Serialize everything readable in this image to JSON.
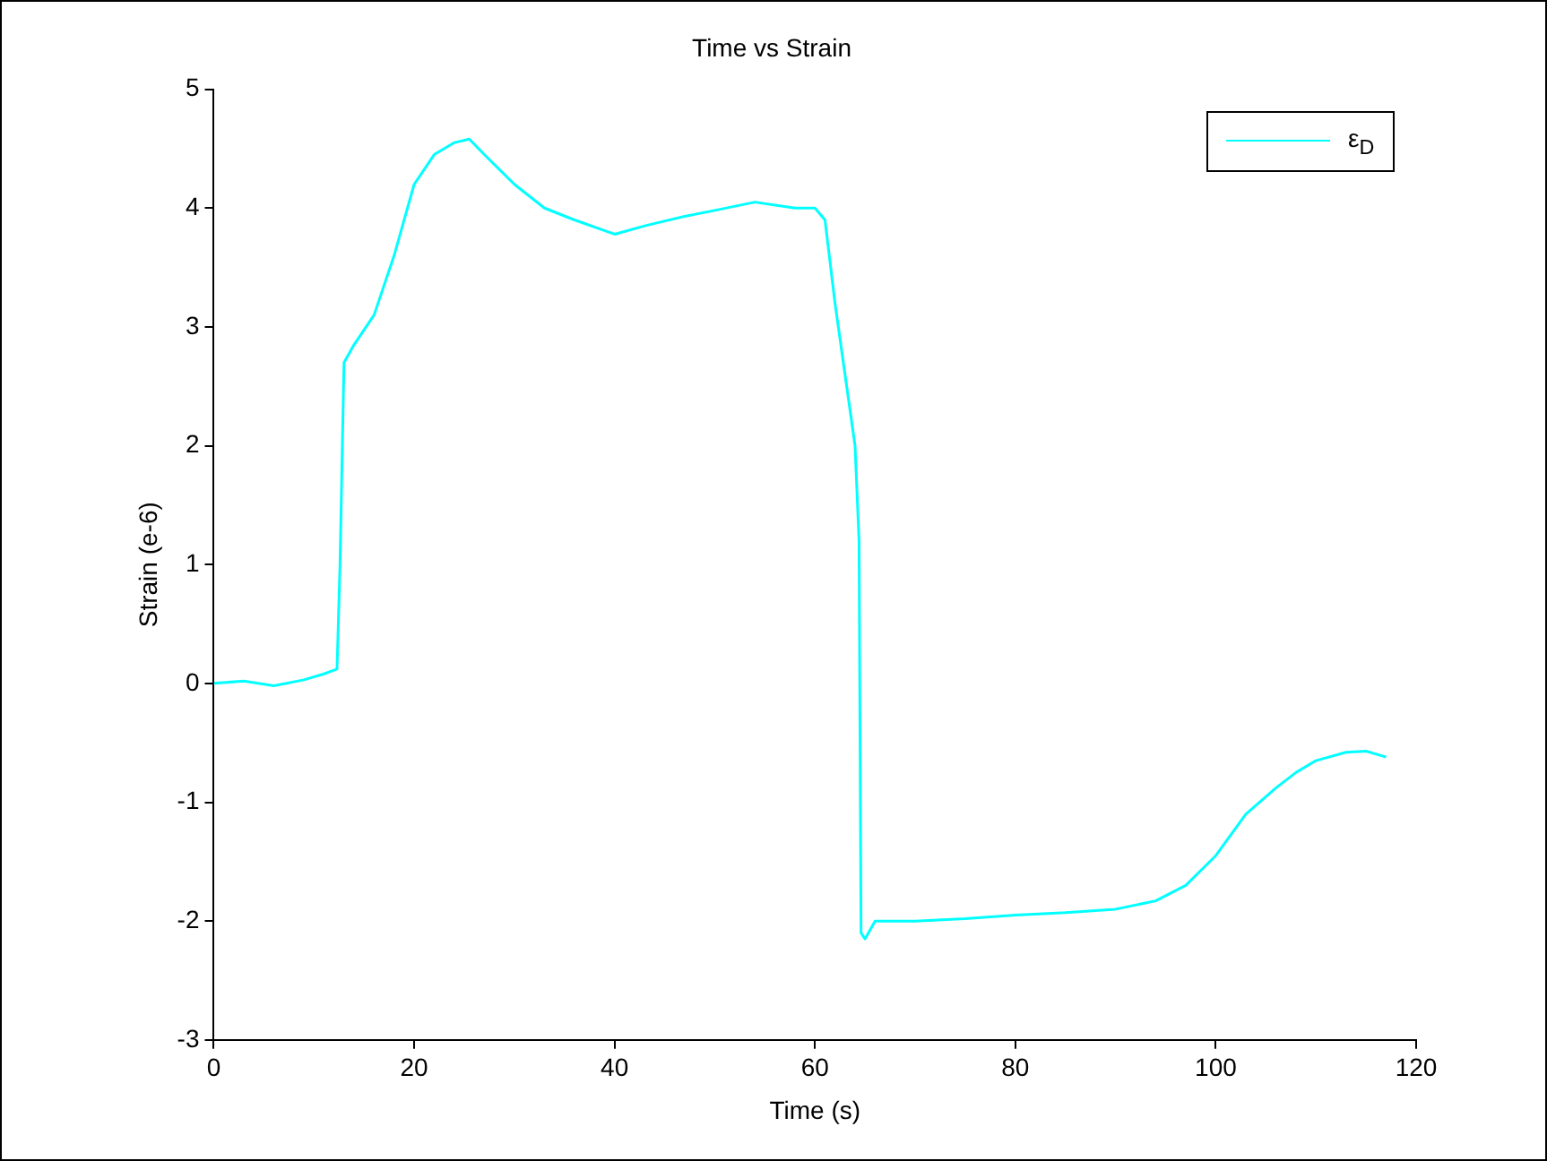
{
  "chart_data": {
    "type": "line",
    "title": "Time vs Strain",
    "xlabel": "Time (s)",
    "ylabel": "Strain (e-6)",
    "legend": "top right",
    "grid": false,
    "marker": "none",
    "line_style": "solid",
    "xlim": [
      0,
      120
    ],
    "xticks": [
      0,
      20,
      40,
      60,
      80,
      100,
      120
    ],
    "ylim": [
      -3,
      5
    ],
    "yticks": [
      -3,
      -2,
      -1,
      0,
      1,
      2,
      3,
      4,
      5
    ],
    "series": [
      {
        "name": "ε$_{D}$",
        "color": "#00ffff",
        "x": [
          0,
          3,
          6,
          9,
          11,
          12.3,
          12.6,
          13,
          14,
          16,
          18,
          20,
          22,
          24,
          25.5,
          27,
          30,
          33,
          36,
          40,
          43,
          47,
          50,
          54,
          58,
          60,
          61,
          62,
          63,
          64,
          64.4,
          64.6,
          65,
          66,
          70,
          75,
          80,
          85,
          90,
          94,
          97,
          100,
          103,
          106,
          108,
          110,
          113,
          115,
          117
        ],
        "values": [
          0,
          0.02,
          -0.02,
          0.03,
          0.08,
          0.12,
          1.0,
          2.7,
          2.85,
          3.1,
          3.6,
          4.2,
          4.45,
          4.55,
          4.58,
          4.45,
          4.2,
          4.0,
          3.9,
          3.78,
          3.85,
          3.93,
          3.98,
          4.05,
          4.0,
          4.0,
          3.9,
          3.2,
          2.6,
          2.0,
          1.2,
          -2.1,
          -2.15,
          -2.0,
          -2.0,
          -1.98,
          -1.95,
          -1.93,
          -1.9,
          -1.83,
          -1.7,
          -1.45,
          -1.1,
          -0.88,
          -0.75,
          -0.65,
          -0.58,
          -0.57,
          -0.62
        ]
      }
    ]
  }
}
